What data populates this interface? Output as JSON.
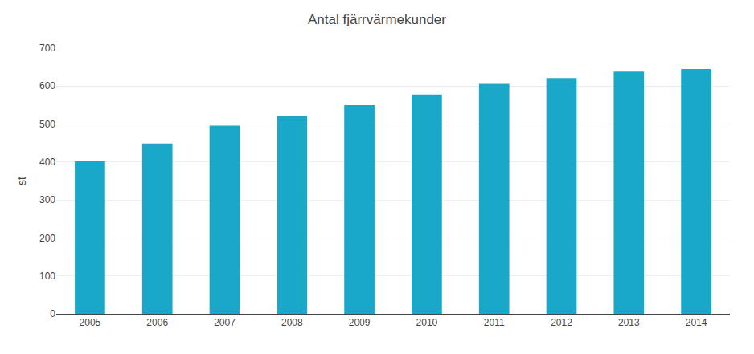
{
  "chart_data": {
    "type": "bar",
    "title": "Antal fjärrvärmekunder",
    "ylabel": "st",
    "categories": [
      "2005",
      "2006",
      "2007",
      "2008",
      "2009",
      "2010",
      "2011",
      "2012",
      "2013",
      "2014"
    ],
    "values": [
      402,
      449,
      496,
      522,
      550,
      578,
      606,
      621,
      638,
      645
    ],
    "color": "#1aa8c8",
    "ylim": [
      0,
      700
    ],
    "yticks": [
      0,
      100,
      200,
      300,
      400,
      500,
      600,
      700
    ],
    "grid": true
  }
}
